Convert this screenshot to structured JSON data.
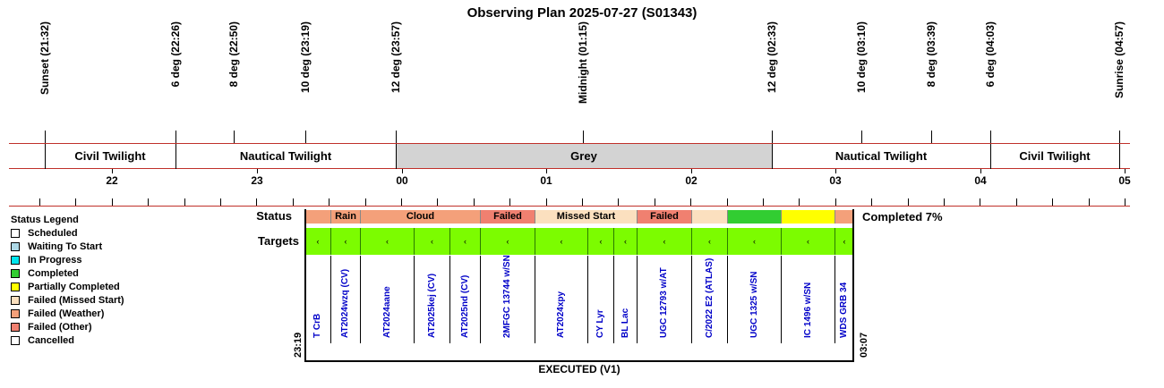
{
  "title": "Observing Plan 2025-07-27 (S01343)",
  "events": [
    {
      "label": "Sunset (21:32)"
    },
    {
      "label": "6 deg (22:26)"
    },
    {
      "label": "8 deg (22:50)"
    },
    {
      "label": "10 deg (23:19)"
    },
    {
      "label": "12 deg (23:57)"
    },
    {
      "label": "Midnight (01:15)"
    },
    {
      "label": "12 deg (02:33)"
    },
    {
      "label": "10 deg (03:10)"
    },
    {
      "label": "8 deg (03:39)"
    },
    {
      "label": "6 deg (04:03)"
    },
    {
      "label": "Sunrise (04:57)"
    }
  ],
  "bands": [
    {
      "label": "Civil Twilight"
    },
    {
      "label": "Nautical Twilight"
    },
    {
      "label": "Grey"
    },
    {
      "label": "Nautical Twilight"
    },
    {
      "label": "Civil Twilight"
    }
  ],
  "hours": [
    "22",
    "23",
    "00",
    "01",
    "02",
    "03",
    "04",
    "05"
  ],
  "legend": {
    "title": "Status Legend",
    "items": [
      {
        "label": "Scheduled",
        "color": "#ffffff"
      },
      {
        "label": "Waiting To Start",
        "color": "#add8e6"
      },
      {
        "label": "In Progress",
        "color": "#00e5ee"
      },
      {
        "label": "Completed",
        "color": "#32cd32"
      },
      {
        "label": "Partially Completed",
        "color": "#ffff00"
      },
      {
        "label": "Failed (Missed Start)",
        "color": "#fbe0bf"
      },
      {
        "label": "Failed (Weather)",
        "color": "#f4a07a"
      },
      {
        "label": "Failed (Other)",
        "color": "#f08070"
      },
      {
        "label": "Cancelled",
        "color": "#ffffff"
      }
    ]
  },
  "status_row": {
    "label": "Status",
    "completion": "Completed 7%",
    "segments": [
      {
        "label": "",
        "color": "#f4a07a"
      },
      {
        "label": "Rain",
        "color": "#f4a07a"
      },
      {
        "label": "Cloud",
        "color": "#f4a07a"
      },
      {
        "label": "Failed",
        "color": "#f08070"
      },
      {
        "label": "Missed Start",
        "color": "#fbe0bf"
      },
      {
        "label": "Failed",
        "color": "#f08070"
      },
      {
        "label": "",
        "color": "#fbe0bf"
      },
      {
        "label": "",
        "color": "#32cd32"
      },
      {
        "label": "",
        "color": "#ffff00"
      },
      {
        "label": "",
        "color": "#f4a07a"
      }
    ]
  },
  "targets_row": {
    "label": "Targets",
    "marker": "‹",
    "targets": [
      "T CrB",
      "AT2024wzq (CV)",
      "AT2024aane",
      "AT2025kej (CV)",
      "AT2025nd (CV)",
      "2MFGC 13744 w/SN",
      "AT2024xpy",
      "CY Lyr",
      "BL Lac",
      "UGC 12793 w/AT",
      "C/2022 E2 (ATLAS)",
      "UGC 1325 w/SN",
      "IC 1496 w/SN",
      "WDS GRB 34"
    ]
  },
  "start_time": "23:19",
  "end_time": "03:07",
  "footer": "EXECUTED (V1)"
}
